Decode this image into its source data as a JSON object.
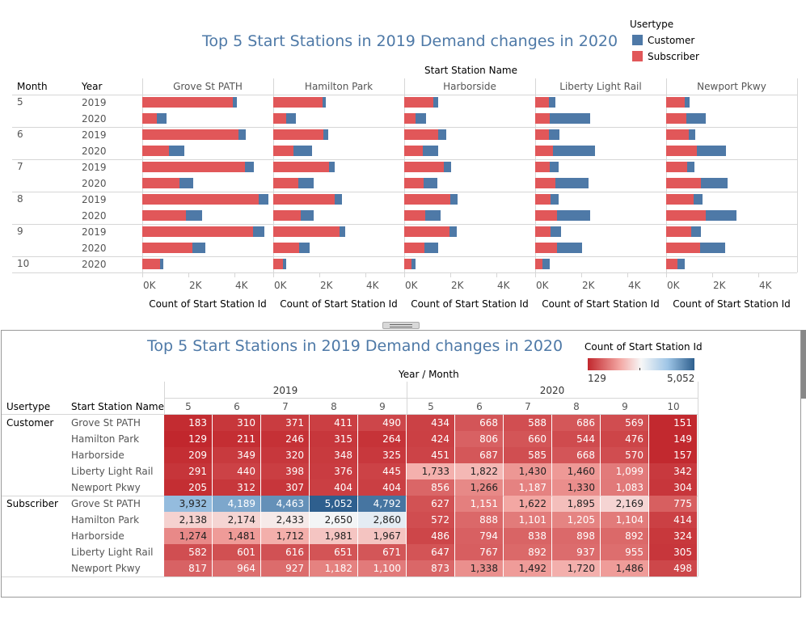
{
  "top_chart": {
    "title": "Top 5 Start Stations in 2019 Demand changes in 2020",
    "legend_title": "Usertype",
    "legend_items": [
      {
        "label": "Customer",
        "color": "#4e79a7"
      },
      {
        "label": "Subscriber",
        "color": "#e15759"
      }
    ],
    "column_header": "Start Station Name",
    "row_header_month": "Month",
    "row_header_year": "Year",
    "axis_ticks": [
      "0K",
      "2K",
      "4K"
    ],
    "axis_label": "Count of Start Station Id"
  },
  "heatmap": {
    "title": "Top 5 Start Stations in 2019 Demand changes in 2020",
    "legend_title": "Count of Start Station Id",
    "legend_min": "129",
    "legend_max": "5,052",
    "col_header": "Year / Month",
    "row_header_usertype": "Usertype",
    "row_header_station": "Start Station Name",
    "years": [
      "2019",
      "2020"
    ],
    "months_2019": [
      "5",
      "6",
      "7",
      "8",
      "9"
    ],
    "months_2020": [
      "5",
      "6",
      "7",
      "8",
      "9",
      "10"
    ],
    "groups": [
      {
        "usertype": "Customer",
        "rows": [
          {
            "station": "Grove St PATH",
            "values": [
              "183",
              "310",
              "371",
              "411",
              "490",
              "434",
              "668",
              "588",
              "686",
              "569",
              "151"
            ]
          },
          {
            "station": "Hamilton Park",
            "values": [
              "129",
              "211",
              "246",
              "315",
              "264",
              "424",
              "806",
              "660",
              "544",
              "476",
              "149"
            ]
          },
          {
            "station": "Harborside",
            "values": [
              "209",
              "349",
              "320",
              "348",
              "325",
              "451",
              "687",
              "585",
              "668",
              "570",
              "157"
            ]
          },
          {
            "station": "Liberty Light Rail",
            "values": [
              "291",
              "440",
              "398",
              "376",
              "445",
              "1,733",
              "1,822",
              "1,430",
              "1,460",
              "1,099",
              "342"
            ]
          },
          {
            "station": "Newport Pkwy",
            "values": [
              "205",
              "312",
              "307",
              "404",
              "404",
              "856",
              "1,266",
              "1,187",
              "1,330",
              "1,083",
              "304"
            ]
          }
        ]
      },
      {
        "usertype": "Subscriber",
        "rows": [
          {
            "station": "Grove St PATH",
            "values": [
              "3,932",
              "4,189",
              "4,463",
              "5,052",
              "4,792",
              "627",
              "1,151",
              "1,622",
              "1,895",
              "2,169",
              "775"
            ]
          },
          {
            "station": "Hamilton Park",
            "values": [
              "2,138",
              "2,174",
              "2,433",
              "2,650",
              "2,860",
              "572",
              "888",
              "1,101",
              "1,205",
              "1,104",
              "414"
            ]
          },
          {
            "station": "Harborside",
            "values": [
              "1,274",
              "1,481",
              "1,712",
              "1,981",
              "1,967",
              "486",
              "794",
              "838",
              "898",
              "892",
              "324"
            ]
          },
          {
            "station": "Liberty Light Rail",
            "values": [
              "582",
              "601",
              "616",
              "651",
              "671",
              "647",
              "767",
              "892",
              "937",
              "955",
              "305"
            ]
          },
          {
            "station": "Newport Pkwy",
            "values": [
              "817",
              "964",
              "927",
              "1,182",
              "1,100",
              "873",
              "1,338",
              "1,492",
              "1,720",
              "1,486",
              "498"
            ]
          }
        ]
      }
    ]
  },
  "chart_data": [
    {
      "type": "bar",
      "title": "Top 5 Start Stations in 2019 Demand changes in 2020",
      "orientation": "horizontal-stacked",
      "stations": [
        "Grove St PATH",
        "Hamilton Park",
        "Harborside",
        "Liberty Light Rail",
        "Newport Pkwy"
      ],
      "rows": [
        {
          "month": "5",
          "year": "2019"
        },
        {
          "month": "5",
          "year": "2020"
        },
        {
          "month": "6",
          "year": "2019"
        },
        {
          "month": "6",
          "year": "2020"
        },
        {
          "month": "7",
          "year": "2019"
        },
        {
          "month": "7",
          "year": "2020"
        },
        {
          "month": "8",
          "year": "2019"
        },
        {
          "month": "8",
          "year": "2020"
        },
        {
          "month": "9",
          "year": "2019"
        },
        {
          "month": "9",
          "year": "2020"
        },
        {
          "month": "10",
          "year": "2020"
        }
      ],
      "series": [
        {
          "name": "Subscriber",
          "color": "#e15759",
          "values": [
            [
              3932,
              627,
              4189,
              1151,
              4463,
              1622,
              5052,
              1895,
              4792,
              2169,
              775
            ],
            [
              2138,
              572,
              2174,
              888,
              2433,
              1101,
              2650,
              1205,
              2860,
              1104,
              414
            ],
            [
              1274,
              486,
              1481,
              794,
              1712,
              838,
              1981,
              898,
              1967,
              892,
              324
            ],
            [
              582,
              647,
              601,
              767,
              616,
              892,
              651,
              937,
              671,
              955,
              305
            ],
            [
              817,
              873,
              964,
              1338,
              927,
              1492,
              1182,
              1720,
              1100,
              1486,
              498
            ]
          ]
        },
        {
          "name": "Customer",
          "color": "#4e79a7",
          "values": [
            [
              183,
              434,
              310,
              668,
              371,
              588,
              411,
              686,
              490,
              569,
              151
            ],
            [
              129,
              424,
              211,
              806,
              246,
              660,
              315,
              544,
              264,
              476,
              149
            ],
            [
              209,
              451,
              349,
              687,
              320,
              585,
              348,
              668,
              325,
              570,
              157
            ],
            [
              291,
              1733,
              440,
              1822,
              398,
              1430,
              376,
              1460,
              445,
              1099,
              342
            ],
            [
              205,
              856,
              312,
              1266,
              307,
              1187,
              404,
              1330,
              404,
              1083,
              304
            ]
          ]
        }
      ],
      "xlabel": "Count of Start Station Id",
      "x_ticks": [
        "0K",
        "2K",
        "4K"
      ],
      "xlim": [
        0,
        5500
      ]
    },
    {
      "type": "heatmap",
      "title": "Top 5 Start Stations in 2019 Demand changes in 2020",
      "columns": [
        "2019 / 5",
        "2019 / 6",
        "2019 / 7",
        "2019 / 8",
        "2019 / 9",
        "2020 / 5",
        "2020 / 6",
        "2020 / 7",
        "2020 / 8",
        "2020 / 9",
        "2020 / 10"
      ],
      "color_range": [
        129,
        5052
      ],
      "color_low": "#c1272d",
      "color_mid": "#f7f7f7",
      "color_high": "#2e5f8e"
    }
  ]
}
